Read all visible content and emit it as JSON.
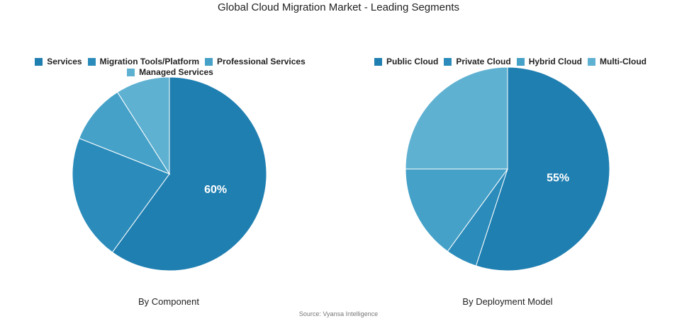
{
  "title": "Global Cloud Migration Market - Leading Segments",
  "source": "Source: Vyansa Intelligence",
  "chart_data": [
    {
      "type": "pie",
      "caption": "By Component",
      "slices": [
        {
          "label": "Services",
          "value": 60,
          "color": "#1f7fb1",
          "show_label": true
        },
        {
          "label": "Migration Tools/Platform",
          "value": 21,
          "color": "#2b8cbb"
        },
        {
          "label": "Professional Services",
          "value": 10,
          "color": "#45a1c8"
        },
        {
          "label": "Managed Services",
          "value": 9,
          "color": "#5fb1d2"
        }
      ],
      "data_label": "60%",
      "legend_position": "top"
    },
    {
      "type": "pie",
      "caption": "By Deployment Model",
      "slices": [
        {
          "label": "Public Cloud",
          "value": 55,
          "color": "#1f7fb1",
          "show_label": true
        },
        {
          "label": "Private Cloud",
          "value": 5,
          "color": "#2b8cbb"
        },
        {
          "label": "Hybrid Cloud",
          "value": 15,
          "color": "#45a1c8"
        },
        {
          "label": "Multi-Cloud",
          "value": 25,
          "color": "#5fb1d2"
        }
      ],
      "data_label": "55%",
      "legend_position": "top"
    }
  ]
}
